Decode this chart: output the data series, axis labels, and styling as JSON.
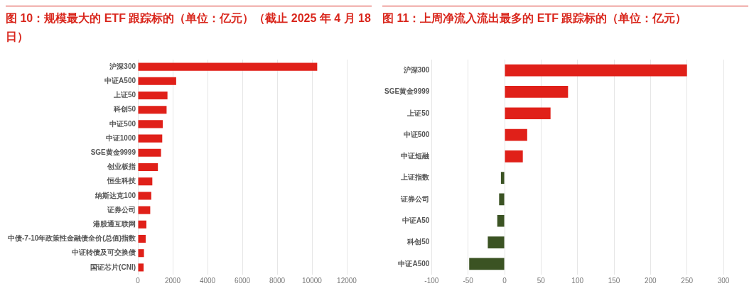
{
  "chart_data": [
    {
      "type": "bar",
      "title": "图 10：规模最大的 ETF 跟踪标的（单位：亿元）（截止 2025 年 4 月 18 日）",
      "orientation": "horizontal",
      "grid": "x",
      "categories": [
        "沪深300",
        "中证A500",
        "上证50",
        "科创50",
        "中证500",
        "中证1000",
        "SGE黄金9999",
        "创业板指",
        "恒生科技",
        "纳斯达克100",
        "证券公司",
        "港股通互联网",
        "中债-7-10年政策性金融债全价(总值)指数",
        "中证转债及可交换债",
        "国证芯片(CNI)"
      ],
      "values": [
        10300,
        2200,
        1700,
        1650,
        1430,
        1400,
        1330,
        1150,
        830,
        770,
        710,
        490,
        450,
        350,
        330
      ],
      "color": "#e02019",
      "xlim": [
        0,
        12000
      ],
      "xticks": [
        0,
        2000,
        4000,
        6000,
        8000,
        10000,
        12000
      ]
    },
    {
      "type": "bar",
      "title": "图 11：上周净流入流出最多的 ETF 跟踪标的（单位：亿元）",
      "orientation": "horizontal",
      "grid": "x",
      "categories": [
        "沪深300",
        "SGE黄金9999",
        "上证50",
        "中证500",
        "中证短融",
        "上证指数",
        "证券公司",
        "中证A50",
        "科创50",
        "中证A500"
      ],
      "values": [
        250,
        87,
        63,
        31,
        25,
        -5,
        -7.5,
        -10,
        -23,
        -48.5
      ],
      "colors": [
        "#e02019",
        "#e02019",
        "#e02019",
        "#e02019",
        "#e02019",
        "#3b5323",
        "#3b5323",
        "#3b5323",
        "#3b5323",
        "#3b5323"
      ],
      "xlim": [
        -100,
        300
      ],
      "xticks": [
        -100,
        -50,
        0,
        50,
        100,
        150,
        200,
        250,
        300
      ]
    }
  ]
}
